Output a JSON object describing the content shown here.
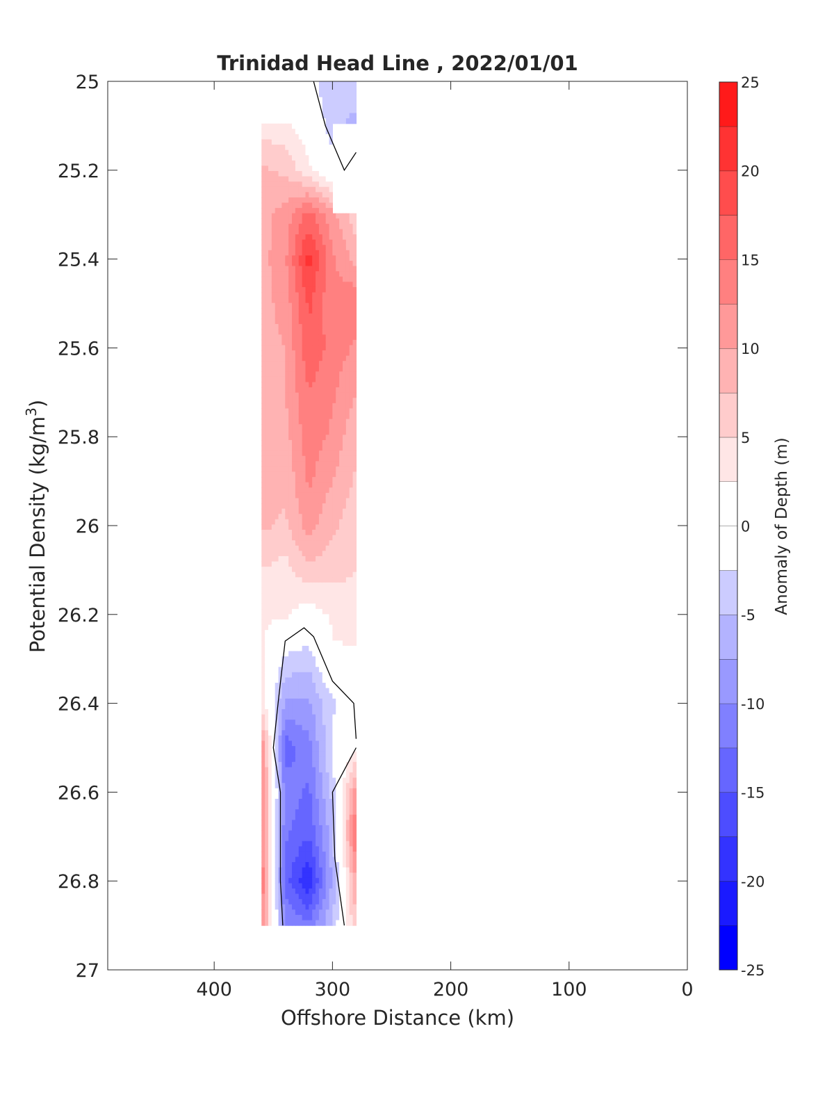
{
  "chart_data": {
    "type": "heatmap",
    "subtype": "filled-contour",
    "title": "Trinidad Head Line , 2022/01/01",
    "xlabel": "Offshore Distance (km)",
    "ylabel": "Potential Density (kg/m3)",
    "ylabel_base": "Potential Density (kg/m",
    "ylabel_sup": "3",
    "ylabel_end": ")",
    "xlim": [
      490,
      0
    ],
    "ylim": [
      25,
      27
    ],
    "x_reversed": true,
    "y_reversed": true,
    "xticks": [
      400,
      300,
      200,
      100,
      0
    ],
    "xtick_labels": [
      "400",
      "300",
      "200",
      "100",
      "0"
    ],
    "yticks": [
      25,
      25.2,
      25.4,
      25.6,
      25.8,
      26,
      26.2,
      26.4,
      26.6,
      26.8,
      27
    ],
    "ytick_labels": [
      "25",
      "25.2",
      "25.4",
      "25.6",
      "25.8",
      "26",
      "26.2",
      "26.4",
      "26.6",
      "26.8",
      "27"
    ],
    "grid": false,
    "colorbar": {
      "label": "Anomaly of Depth (m)",
      "range": [
        -25,
        25
      ],
      "levels": [
        -25,
        -22.5,
        -20,
        -17.5,
        -15,
        -12.5,
        -10,
        -7.5,
        -5,
        -2.5,
        0,
        2.5,
        5,
        7.5,
        10,
        12.5,
        15,
        17.5,
        20,
        22.5,
        25
      ],
      "ticks": [
        -25,
        -20,
        -15,
        -10,
        -5,
        0,
        5,
        10,
        15,
        20,
        25
      ],
      "tick_labels": [
        "-25",
        "-20",
        "-15",
        "-10",
        "-5",
        "0",
        "5",
        "10",
        "15",
        "20",
        "25"
      ],
      "colors": [
        "#0000ff",
        "#1a1aff",
        "#3333ff",
        "#4d4dff",
        "#6666ff",
        "#8080ff",
        "#9999ff",
        "#b3b3ff",
        "#ccccff",
        "#e6e6ff",
        "#ffffff",
        "#ffffff",
        "#ffe6e6",
        "#ffcccc",
        "#ffb3b3",
        "#ff9999",
        "#ff8080",
        "#ff6666",
        "#ff4d4d",
        "#ff3333",
        "#ff1a1a",
        "#ff0000"
      ]
    },
    "x_stations_km": [
      360,
      340,
      320,
      300,
      280
    ],
    "y_density": [
      25.0,
      25.1,
      25.2,
      25.3,
      25.4,
      25.5,
      25.6,
      25.7,
      25.8,
      25.9,
      26.0,
      26.1,
      26.2,
      26.3,
      26.4,
      26.5,
      26.6,
      26.7,
      26.8,
      26.9
    ],
    "anomaly_m": [
      [
        null,
        null,
        -1,
        -5,
        -3
      ],
      [
        4,
        3,
        1,
        -4,
        -6
      ],
      [
        8,
        7,
        3,
        -1,
        null
      ],
      [
        9,
        11,
        16,
        11,
        6
      ],
      [
        9,
        12,
        21,
        13,
        9
      ],
      [
        9,
        11,
        18,
        13,
        15
      ],
      [
        9,
        10,
        17,
        14,
        12
      ],
      [
        9,
        10,
        15,
        13,
        10
      ],
      [
        9,
        9,
        14,
        12,
        8
      ],
      [
        9,
        8,
        13,
        10,
        7
      ],
      [
        8,
        7,
        11,
        8,
        6
      ],
      [
        5,
        4,
        7,
        6,
        5
      ],
      [
        3,
        3,
        1,
        3,
        4
      ],
      [
        3,
        -3,
        -4,
        2,
        2
      ],
      [
        4,
        -8,
        -8,
        -3,
        0
      ],
      [
        13,
        -14,
        -11,
        -2,
        2
      ],
      [
        13,
        -11,
        -13,
        -4,
        12
      ],
      [
        13,
        -12,
        -15,
        -6,
        16
      ],
      [
        15,
        -14,
        -20,
        -7,
        10
      ],
      [
        13,
        -10,
        -12,
        -5,
        7
      ]
    ],
    "zero_contour_km_density": [
      [
        [
          316,
          25.0
        ],
        [
          306,
          25.1
        ],
        [
          290,
          25.2
        ],
        [
          280,
          25.16
        ]
      ],
      [
        [
          280,
          26.48
        ],
        [
          282,
          26.4
        ],
        [
          300,
          26.35
        ],
        [
          316,
          26.25
        ],
        [
          324,
          26.23
        ],
        [
          340,
          26.26
        ],
        [
          346,
          26.4
        ],
        [
          350,
          26.5
        ],
        [
          344,
          26.6
        ],
        [
          344,
          26.8
        ],
        [
          342,
          26.9
        ]
      ],
      [
        [
          280,
          26.5
        ],
        [
          300,
          26.6
        ],
        [
          298,
          26.75
        ],
        [
          290,
          26.9
        ]
      ]
    ]
  }
}
